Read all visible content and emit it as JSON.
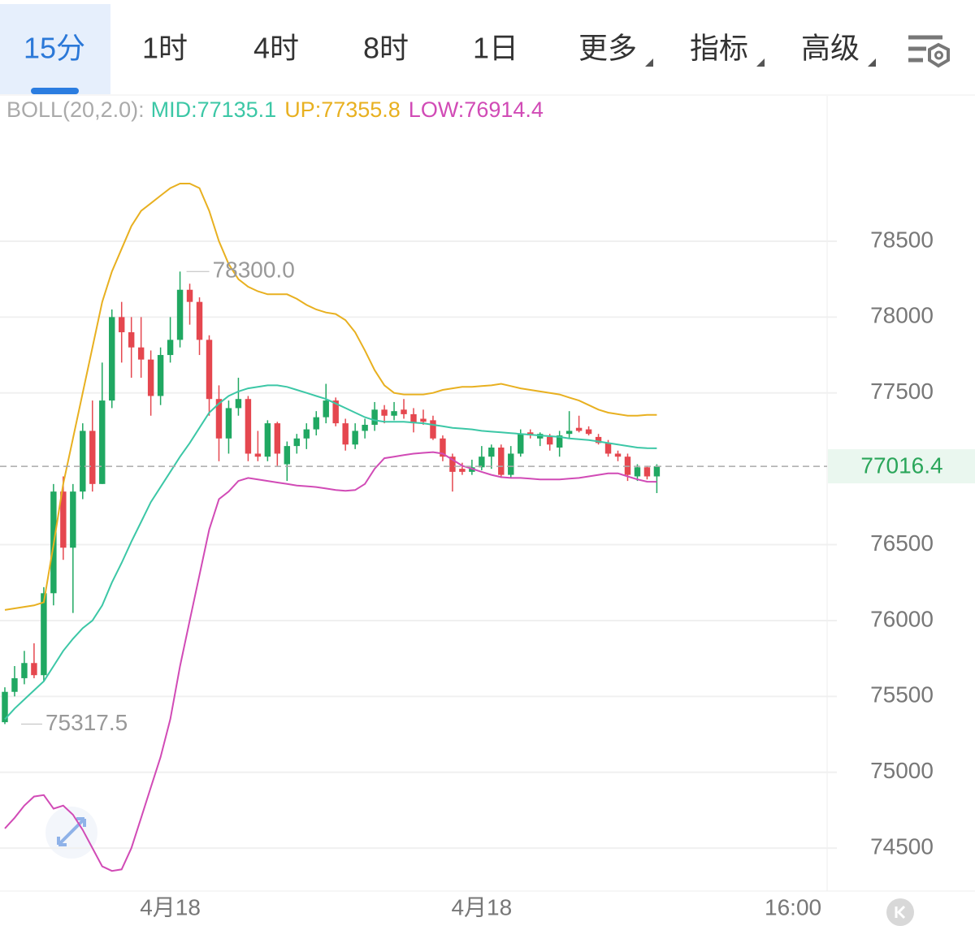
{
  "tabs": [
    {
      "label": "15分",
      "active": true
    },
    {
      "label": "1时"
    },
    {
      "label": "4时"
    },
    {
      "label": "8时"
    },
    {
      "label": "1日"
    },
    {
      "label": "更多",
      "dropdown": true
    },
    {
      "label": "指标",
      "dropdown": true
    },
    {
      "label": "高级",
      "dropdown": true
    }
  ],
  "chart_data": {
    "type": "candlestick",
    "indicator": "BOLL(20,2.0):",
    "up_color": "#20a862",
    "down_color": "#e5474f",
    "xlim": [
      -0.5,
      84.5
    ],
    "xticks": [
      {
        "value": 17,
        "label": "4月18"
      },
      {
        "value": 49,
        "label": "4月18"
      },
      {
        "value": 81,
        "label": "16:00"
      }
    ],
    "ylim": [
      74217,
      79458
    ],
    "yticks": [
      74500,
      75000,
      75500,
      76000,
      76500,
      77500,
      78000,
      78500
    ],
    "grid": true,
    "last_price": 77016.4,
    "high_label": "78300.0",
    "low_label": "75317.5",
    "open": [
      75330,
      75530,
      75620,
      75720,
      75640,
      76180,
      76850,
      76480,
      76850,
      77250,
      76900,
      77450,
      78000,
      77900,
      77800,
      77720,
      77480,
      77750,
      77850,
      78180,
      78100,
      77850,
      77460,
      77200,
      77400,
      77460,
      77100,
      77080,
      77300,
      77030,
      77150,
      77200,
      77260,
      77340,
      77450,
      77300,
      77160,
      77250,
      77290,
      77390,
      77350,
      77390,
      77360,
      77330,
      77320,
      77200,
      77080,
      77000,
      76980,
      77010,
      77080,
      77140,
      76960,
      77100,
      77240,
      77200,
      77210,
      77140,
      77230,
      77270,
      77260,
      77210,
      77170,
      77100,
      77080,
      76950,
      77010,
      76950
    ],
    "high": [
      75560,
      75700,
      75800,
      75850,
      76220,
      76900,
      76950,
      76900,
      77300,
      77450,
      77700,
      78050,
      78100,
      78000,
      78000,
      77780,
      77800,
      78000,
      78300,
      78220,
      78130,
      77880,
      77550,
      77450,
      77600,
      77480,
      77250,
      77320,
      77310,
      77180,
      77230,
      77300,
      77380,
      77560,
      77470,
      77330,
      77300,
      77330,
      77440,
      77420,
      77440,
      77460,
      77400,
      77390,
      77350,
      77220,
      77100,
      77040,
      77060,
      77150,
      77160,
      77160,
      77150,
      77260,
      77260,
      77240,
      77230,
      77250,
      77380,
      77350,
      77280,
      77230,
      77190,
      77120,
      77100,
      77030,
      77020,
      77030
    ],
    "low": [
      75317.5,
      75500,
      75580,
      75620,
      75600,
      76100,
      76400,
      76050,
      76800,
      76850,
      76900,
      77400,
      77700,
      77600,
      77600,
      77350,
      77420,
      77700,
      77800,
      77950,
      77750,
      77350,
      77050,
      77100,
      77350,
      77050,
      77050,
      77050,
      77020,
      76920,
      77100,
      77130,
      77220,
      77300,
      77280,
      77120,
      77130,
      77200,
      77250,
      77300,
      77320,
      77330,
      77240,
      77290,
      77190,
      77050,
      76850,
      76960,
      76960,
      76990,
      77000,
      76940,
      76940,
      77080,
      77200,
      77150,
      77120,
      77080,
      77200,
      77240,
      77220,
      77160,
      77080,
      77050,
      76920,
      76920,
      76930,
      76840
    ],
    "close": [
      75530,
      75620,
      75720,
      75640,
      76180,
      76850,
      76480,
      76850,
      77250,
      76900,
      77450,
      78000,
      77900,
      77800,
      77720,
      77480,
      77750,
      77850,
      78180,
      78100,
      77850,
      77460,
      77200,
      77400,
      77460,
      77100,
      77080,
      77300,
      77100,
      77150,
      77200,
      77260,
      77340,
      77450,
      77300,
      77160,
      77250,
      77290,
      77390,
      77350,
      77380,
      77360,
      77300,
      77310,
      77200,
      77080,
      76980,
      76980,
      77010,
      77080,
      77140,
      76960,
      77100,
      77230,
      77220,
      77230,
      77160,
      77220,
      77250,
      77250,
      77230,
      77170,
      77100,
      77080,
      76960,
      77010,
      76950,
      77016.4
    ],
    "series": [
      {
        "label": "MID:77135.1",
        "color": "#3cc7a6",
        "values": [
          75350,
          75420,
          75480,
          75540,
          75600,
          75700,
          75800,
          75880,
          75950,
          76000,
          76100,
          76250,
          76380,
          76520,
          76650,
          76780,
          76880,
          76980,
          77080,
          77170,
          77270,
          77370,
          77430,
          77480,
          77510,
          77530,
          77540,
          77550,
          77550,
          77540,
          77520,
          77500,
          77480,
          77460,
          77430,
          77400,
          77370,
          77340,
          77320,
          77310,
          77310,
          77310,
          77305,
          77300,
          77290,
          77280,
          77270,
          77265,
          77260,
          77250,
          77245,
          77240,
          77235,
          77230,
          77225,
          77220,
          77215,
          77210,
          77200,
          77195,
          77190,
          77180,
          77170,
          77160,
          77150,
          77140,
          77136,
          77135.1
        ]
      },
      {
        "label": "UP:77355.8",
        "color": "#e8b020",
        "values": [
          76070,
          76080,
          76090,
          76100,
          76120,
          76500,
          76900,
          77200,
          77500,
          77800,
          78100,
          78300,
          78450,
          78600,
          78700,
          78750,
          78800,
          78850,
          78880,
          78880,
          78850,
          78700,
          78500,
          78350,
          78250,
          78200,
          78170,
          78150,
          78150,
          78150,
          78120,
          78080,
          78050,
          78030,
          78020,
          77980,
          77900,
          77780,
          77650,
          77550,
          77500,
          77490,
          77490,
          77490,
          77500,
          77520,
          77530,
          77540,
          77540,
          77545,
          77550,
          77560,
          77545,
          77530,
          77520,
          77510,
          77500,
          77490,
          77470,
          77450,
          77420,
          77390,
          77370,
          77360,
          77350,
          77350,
          77355,
          77355.8
        ]
      },
      {
        "label": "LOW:76914.4",
        "color": "#d14bb6",
        "values": [
          74630,
          74700,
          74780,
          74840,
          74850,
          74760,
          74780,
          74720,
          74620,
          74500,
          74380,
          74350,
          74360,
          74500,
          74700,
          74900,
          75100,
          75350,
          75700,
          76000,
          76300,
          76600,
          76800,
          76850,
          76920,
          76940,
          76930,
          76920,
          76910,
          76900,
          76890,
          76885,
          76880,
          76870,
          76860,
          76855,
          76860,
          76900,
          77000,
          77070,
          77080,
          77090,
          77100,
          77105,
          77110,
          77100,
          77060,
          77020,
          77000,
          76980,
          76960,
          76945,
          76940,
          76940,
          76935,
          76930,
          76930,
          76930,
          76935,
          76940,
          76950,
          76960,
          76970,
          76970,
          76950,
          76930,
          76915,
          76914.4
        ]
      }
    ]
  }
}
